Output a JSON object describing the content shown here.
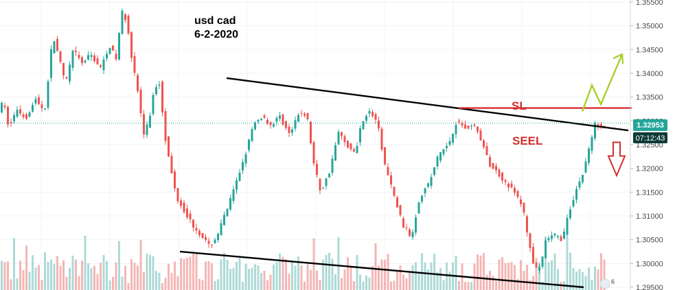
{
  "chart_data": {
    "type": "candlestick",
    "symbol_note": "usd cad",
    "date_note": "6-2-2020",
    "ylim": [
      1.295,
      1.356
    ],
    "y_ticks": [
      "1.35500",
      "1.35000",
      "1.34500",
      "1.34000",
      "1.33500",
      "1.33000",
      "1.32500",
      "1.32000",
      "1.31500",
      "1.31000",
      "1.30500",
      "1.30000",
      "1.29500"
    ],
    "y_tick_values": [
      1.355,
      1.35,
      1.345,
      1.34,
      1.335,
      1.33,
      1.325,
      1.32,
      1.315,
      1.31,
      1.305,
      1.3,
      1.295
    ],
    "last_price": 1.32953,
    "last_price_label": "1.32953",
    "countdown_label": "07:12:43",
    "colors": {
      "up": "#26a69a",
      "down": "#ef5350",
      "volume_up": "#9fd4cf",
      "volume_down": "#f2a9a8",
      "sl_line": "#d32f2f",
      "seel_text": "#d32f2f",
      "trend_lines": "#000000",
      "up_arrow": "#a8d02a",
      "down_arrow": "#d32f2f",
      "price_label_bg": "#26a69a",
      "countdown_bg": "#0f3a37"
    },
    "annotations": {
      "sl_label": "SL",
      "sl_price": 1.3327,
      "seel_label": "SEEL",
      "badge_count": "6"
    },
    "price_path": [
      [
        0,
        1.332
      ],
      [
        8,
        1.334
      ],
      [
        16,
        1.3285
      ],
      [
        28,
        1.3325
      ],
      [
        40,
        1.3305
      ],
      [
        55,
        1.3345
      ],
      [
        68,
        1.332
      ],
      [
        80,
        1.348
      ],
      [
        88,
        1.344
      ],
      [
        98,
        1.3375
      ],
      [
        110,
        1.345
      ],
      [
        122,
        1.342
      ],
      [
        135,
        1.344
      ],
      [
        150,
        1.341
      ],
      [
        162,
        1.346
      ],
      [
        172,
        1.343
      ],
      [
        180,
        1.353
      ],
      [
        188,
        1.351
      ],
      [
        196,
        1.342
      ],
      [
        204,
        1.336
      ],
      [
        212,
        1.327
      ],
      [
        220,
        1.33
      ],
      [
        228,
        1.337
      ],
      [
        236,
        1.338
      ],
      [
        242,
        1.328
      ],
      [
        250,
        1.321
      ],
      [
        260,
        1.314
      ],
      [
        272,
        1.311
      ],
      [
        284,
        1.308
      ],
      [
        296,
        1.306
      ],
      [
        308,
        1.3035
      ],
      [
        318,
        1.3055
      ],
      [
        330,
        1.31
      ],
      [
        345,
        1.316
      ],
      [
        360,
        1.323
      ],
      [
        372,
        1.329
      ],
      [
        385,
        1.331
      ],
      [
        398,
        1.329
      ],
      [
        410,
        1.331
      ],
      [
        425,
        1.327
      ],
      [
        440,
        1.332
      ],
      [
        450,
        1.331
      ],
      [
        460,
        1.321
      ],
      [
        470,
        1.315
      ],
      [
        482,
        1.319
      ],
      [
        496,
        1.3275
      ],
      [
        508,
        1.325
      ],
      [
        520,
        1.323
      ],
      [
        530,
        1.33
      ],
      [
        540,
        1.332
      ],
      [
        552,
        1.33
      ],
      [
        563,
        1.321
      ],
      [
        575,
        1.315
      ],
      [
        590,
        1.308
      ],
      [
        602,
        1.3055
      ],
      [
        614,
        1.314
      ],
      [
        628,
        1.317
      ],
      [
        642,
        1.323
      ],
      [
        656,
        1.325
      ],
      [
        668,
        1.33
      ],
      [
        680,
        1.3285
      ],
      [
        694,
        1.329
      ],
      [
        705,
        1.3255
      ],
      [
        715,
        1.321
      ],
      [
        728,
        1.319
      ],
      [
        740,
        1.317
      ],
      [
        752,
        1.315
      ],
      [
        764,
        1.312
      ],
      [
        774,
        1.304
      ],
      [
        782,
        1.2985
      ],
      [
        790,
        1.299
      ],
      [
        798,
        1.305
      ],
      [
        810,
        1.306
      ],
      [
        822,
        1.305
      ],
      [
        832,
        1.311
      ],
      [
        842,
        1.3155
      ],
      [
        852,
        1.319
      ],
      [
        862,
        1.325
      ],
      [
        870,
        1.3295
      ],
      [
        880,
        1.329
      ]
    ],
    "trend_upper": {
      "from": [
        330,
        1.339
      ],
      "to": [
        915,
        1.328
      ]
    },
    "trend_lower": {
      "from": [
        262,
        1.3025
      ],
      "to": [
        850,
        1.295
      ]
    },
    "sl_segment_x": [
      668,
      920
    ],
    "up_arrow_path": [
      [
        848,
        1.332
      ],
      [
        862,
        1.3375
      ],
      [
        875,
        1.3335
      ],
      [
        906,
        1.344
      ]
    ],
    "down_arrow_x": 898,
    "down_arrow_top": 1.3255,
    "down_arrow_bottom": 1.3185
  }
}
